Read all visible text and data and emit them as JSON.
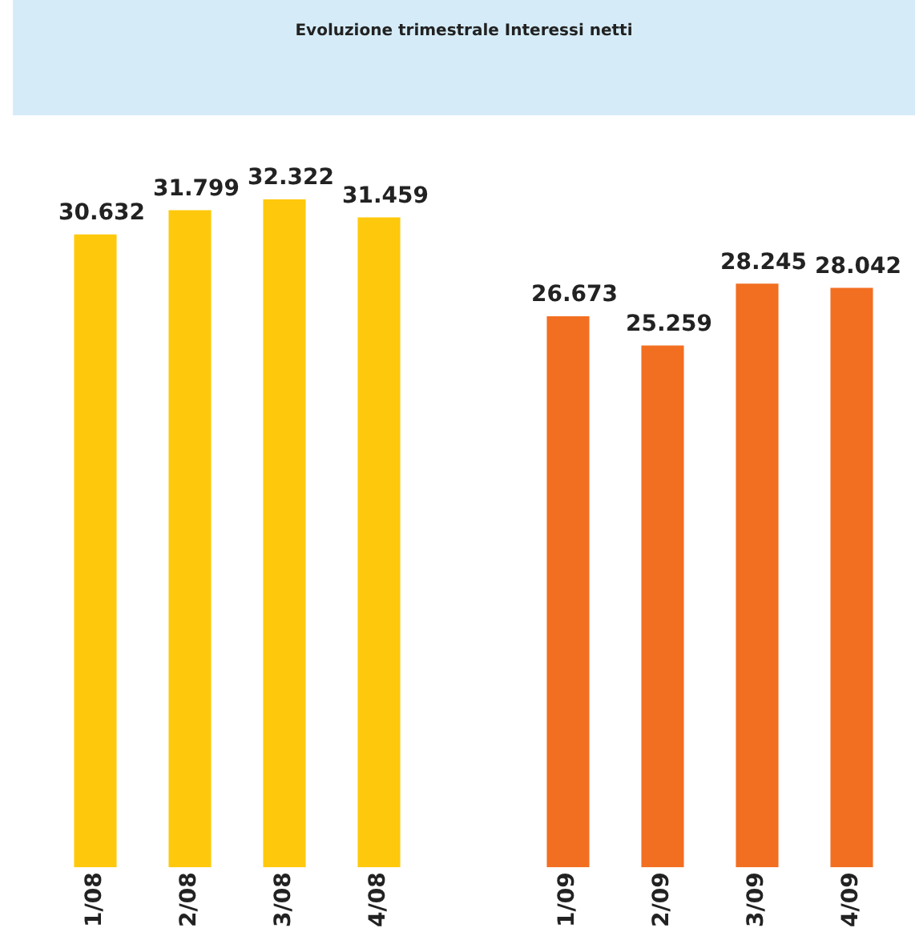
{
  "chart_data": {
    "type": "bar",
    "title": "Evoluzione trimestrale Interessi netti",
    "categories": [
      "1/08",
      "2/08",
      "3/08",
      "4/08",
      null,
      "1/09",
      "2/09",
      "3/09",
      "4/09"
    ],
    "values": [
      30.632,
      31.799,
      32.322,
      31.459,
      null,
      26.673,
      25.259,
      28.245,
      28.042
    ],
    "colors": [
      "#fec90c",
      "#fec90c",
      "#fec90c",
      "#fec90c",
      null,
      "#f26f21",
      "#f26f21",
      "#f26f21",
      "#f26f21"
    ],
    "data_labels": true,
    "grid": false,
    "legend": false
  }
}
